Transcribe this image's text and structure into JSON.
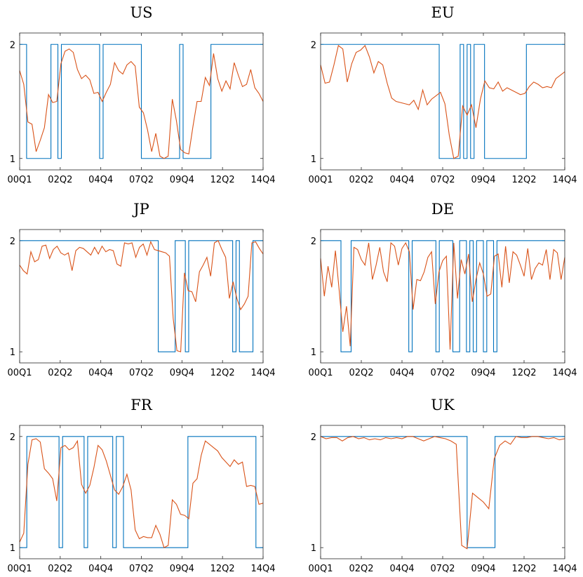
{
  "figure": {
    "colors": {
      "regime": "#0072bd",
      "probability": "#d95319",
      "axis": "#262626"
    }
  },
  "chart_data": [
    {
      "type": "line",
      "title": "US",
      "xticks": [
        "00Q1",
        "02Q2",
        "04Q4",
        "07Q2",
        "09Q4",
        "12Q2",
        "14Q4"
      ],
      "yticks": [
        "1",
        "2"
      ],
      "ylim": [
        0.9,
        2.1
      ],
      "series": [
        {
          "values": [
            2,
            2,
            1,
            1,
            1,
            1,
            1,
            1,
            1,
            2,
            2,
            1,
            2,
            2,
            2,
            2,
            2,
            2,
            2,
            2,
            2,
            2,
            2,
            1,
            2,
            2,
            2,
            2,
            2,
            2,
            2,
            2,
            2,
            2,
            2,
            1,
            1,
            1,
            1,
            1,
            1,
            1,
            1,
            1,
            1,
            1,
            2,
            1,
            1,
            1,
            1,
            1,
            1,
            1,
            1,
            2,
            2,
            2,
            2,
            2,
            2,
            2,
            2,
            2,
            2,
            2,
            2,
            2,
            2,
            2
          ]
        },
        {
          "values": [
            1.77,
            1.65,
            1.32,
            1.3,
            1.06,
            1.16,
            1.27,
            1.56,
            1.49,
            1.5,
            1.83,
            1.94,
            1.96,
            1.93,
            1.78,
            1.7,
            1.73,
            1.69,
            1.57,
            1.58,
            1.5,
            1.58,
            1.65,
            1.84,
            1.77,
            1.74,
            1.82,
            1.85,
            1.81,
            1.45,
            1.4,
            1.25,
            1.06,
            1.22,
            1.02,
            1.0,
            1.02,
            1.52,
            1.33,
            1.08,
            1.05,
            1.04,
            1.28,
            1.5,
            1.5,
            1.71,
            1.64,
            1.92,
            1.7,
            1.59,
            1.68,
            1.61,
            1.84,
            1.73,
            1.63,
            1.65,
            1.78,
            1.62,
            1.57,
            1.5
          ]
        }
      ]
    },
    {
      "type": "line",
      "title": "EU",
      "xticks": [
        "00Q1",
        "02Q2",
        "04Q4",
        "07Q2",
        "09Q4",
        "12Q2",
        "14Q4"
      ],
      "yticks": [
        "1",
        "2"
      ],
      "ylim": [
        0.9,
        2.1
      ],
      "series": [
        {
          "values": [
            2,
            2,
            2,
            2,
            2,
            2,
            2,
            2,
            2,
            2,
            2,
            2,
            2,
            2,
            2,
            2,
            2,
            2,
            2,
            2,
            2,
            2,
            2,
            2,
            2,
            2,
            2,
            2,
            2,
            2,
            2,
            2,
            2,
            2,
            1,
            1,
            1,
            1,
            1,
            1,
            2,
            1,
            2,
            1,
            2,
            2,
            2,
            1,
            1,
            1,
            1,
            1,
            1,
            1,
            1,
            1,
            1,
            1,
            1,
            2,
            2,
            2,
            2,
            2,
            2,
            2,
            2,
            2,
            2,
            2
          ]
        },
        {
          "values": [
            1.82,
            1.66,
            1.67,
            1.82,
            1.99,
            1.96,
            1.67,
            1.83,
            1.93,
            1.95,
            1.99,
            1.89,
            1.75,
            1.85,
            1.82,
            1.66,
            1.53,
            1.5,
            1.49,
            1.48,
            1.47,
            1.51,
            1.43,
            1.6,
            1.47,
            1.52,
            1.55,
            1.58,
            1.48,
            1.2,
            1.0,
            1.02,
            1.46,
            1.38,
            1.47,
            1.27,
            1.52,
            1.68,
            1.62,
            1.61,
            1.67,
            1.59,
            1.62,
            1.6,
            1.58,
            1.56,
            1.57,
            1.63,
            1.67,
            1.65,
            1.62,
            1.63,
            1.62,
            1.7,
            1.73,
            1.76
          ]
        }
      ]
    },
    {
      "type": "line",
      "title": "JP",
      "xticks": [
        "00Q1",
        "02Q2",
        "04Q4",
        "07Q2",
        "09Q4",
        "12Q2",
        "14Q4"
      ],
      "yticks": [
        "1",
        "2"
      ],
      "ylim": [
        0.9,
        2.1
      ],
      "series": [
        {
          "values": [
            2,
            2,
            2,
            2,
            2,
            2,
            2,
            2,
            2,
            2,
            2,
            2,
            2,
            2,
            2,
            2,
            2,
            2,
            2,
            2,
            2,
            2,
            2,
            2,
            2,
            2,
            2,
            2,
            2,
            2,
            2,
            2,
            2,
            2,
            2,
            2,
            2,
            2,
            2,
            2,
            2,
            1,
            1,
            1,
            1,
            1,
            2,
            2,
            2,
            1,
            2,
            2,
            2,
            2,
            2,
            2,
            2,
            2,
            2,
            2,
            2,
            2,
            2,
            1,
            2,
            1,
            1,
            1,
            1,
            2,
            2,
            2
          ]
        },
        {
          "values": [
            1.78,
            1.73,
            1.7,
            1.9,
            1.81,
            1.83,
            1.95,
            1.96,
            1.84,
            1.92,
            1.95,
            1.89,
            1.87,
            1.89,
            1.73,
            1.91,
            1.94,
            1.93,
            1.9,
            1.87,
            1.94,
            1.88,
            1.95,
            1.9,
            1.92,
            1.91,
            1.79,
            1.77,
            1.98,
            1.97,
            1.98,
            1.85,
            1.94,
            1.97,
            1.87,
            1.99,
            1.92,
            1.91,
            1.9,
            1.89,
            1.86,
            1.3,
            1.01,
            1.0,
            1.71,
            1.55,
            1.54,
            1.45,
            1.72,
            1.78,
            1.85,
            1.68,
            1.98,
            2.0,
            1.92,
            1.85,
            1.48,
            1.63,
            1.48,
            1.38,
            1.43,
            1.5,
            1.98,
            1.99,
            1.93,
            1.88
          ]
        }
      ]
    },
    {
      "type": "line",
      "title": "DE",
      "xticks": [
        "00Q1",
        "02Q2",
        "04Q4",
        "07Q2",
        "09Q4",
        "12Q2",
        "14Q4"
      ],
      "yticks": [
        "1",
        "2"
      ],
      "ylim": [
        0.9,
        2.1
      ],
      "series": [
        {
          "values": [
            2,
            2,
            2,
            2,
            2,
            2,
            1,
            1,
            1,
            2,
            2,
            2,
            2,
            2,
            2,
            2,
            2,
            2,
            2,
            2,
            2,
            2,
            2,
            2,
            2,
            2,
            1,
            2,
            2,
            2,
            2,
            2,
            2,
            2,
            1,
            2,
            2,
            2,
            2,
            1,
            1,
            2,
            2,
            1,
            2,
            1,
            2,
            2,
            1,
            2,
            2,
            1,
            2,
            2,
            2,
            2,
            2,
            2,
            2,
            2,
            2,
            2,
            2,
            2,
            2,
            2,
            2,
            2,
            2,
            2,
            2,
            2
          ]
        },
        {
          "values": [
            1.84,
            1.5,
            1.77,
            1.58,
            1.91,
            1.56,
            1.18,
            1.41,
            1.05,
            1.94,
            1.92,
            1.83,
            1.78,
            1.98,
            1.65,
            1.78,
            1.94,
            1.72,
            1.63,
            1.98,
            1.95,
            1.78,
            1.93,
            1.98,
            1.9,
            1.38,
            1.65,
            1.64,
            1.72,
            1.85,
            1.9,
            1.43,
            1.72,
            1.82,
            1.86,
            1.02,
            1.98,
            1.48,
            1.83,
            1.7,
            1.88,
            1.45,
            1.65,
            1.8,
            1.7,
            1.5,
            1.52,
            1.86,
            1.88,
            1.58,
            1.95,
            1.62,
            1.9,
            1.87,
            1.78,
            1.68,
            1.93,
            1.65,
            1.75,
            1.8,
            1.78,
            1.92,
            1.65,
            1.92,
            1.89,
            1.65,
            1.85
          ]
        }
      ]
    },
    {
      "type": "line",
      "title": "FR",
      "xticks": [
        "00Q1",
        "02Q2",
        "04Q4",
        "07Q2",
        "09Q4",
        "12Q2",
        "14Q4"
      ],
      "yticks": [
        "1",
        "2"
      ],
      "ylim": [
        0.9,
        2.1
      ],
      "series": [
        {
          "values": [
            1,
            1,
            2,
            2,
            2,
            2,
            2,
            2,
            2,
            2,
            2,
            1,
            2,
            2,
            2,
            2,
            2,
            2,
            1,
            2,
            2,
            2,
            2,
            2,
            2,
            2,
            1,
            2,
            2,
            1,
            1,
            1,
            1,
            1,
            1,
            1,
            1,
            1,
            1,
            1,
            1,
            1,
            1,
            1,
            1,
            1,
            1,
            2,
            2,
            2,
            2,
            2,
            2,
            2,
            2,
            2,
            2,
            2,
            2,
            2,
            2,
            2,
            2,
            2,
            2,
            2,
            1,
            1
          ]
        },
        {
          "values": [
            1.05,
            1.13,
            1.75,
            1.97,
            1.98,
            1.95,
            1.71,
            1.67,
            1.62,
            1.42,
            1.9,
            1.92,
            1.88,
            1.9,
            1.96,
            1.57,
            1.49,
            1.56,
            1.72,
            1.92,
            1.88,
            1.78,
            1.65,
            1.52,
            1.48,
            1.55,
            1.66,
            1.52,
            1.16,
            1.08,
            1.1,
            1.09,
            1.09,
            1.2,
            1.12,
            1.0,
            1.02,
            1.43,
            1.39,
            1.3,
            1.29,
            1.26,
            1.58,
            1.62,
            1.83,
            1.96,
            1.93,
            1.9,
            1.87,
            1.81,
            1.77,
            1.73,
            1.79,
            1.75,
            1.77,
            1.55,
            1.56,
            1.55,
            1.39,
            1.4
          ]
        }
      ]
    },
    {
      "type": "line",
      "title": "UK",
      "xticks": [
        "00Q1",
        "02Q2",
        "04Q4",
        "07Q2",
        "09Q4",
        "12Q2",
        "14Q4"
      ],
      "yticks": [
        "1",
        "2"
      ],
      "ylim": [
        0.9,
        2.1
      ],
      "series": [
        {
          "values": [
            2,
            2,
            2,
            2,
            2,
            2,
            2,
            2,
            2,
            2,
            2,
            2,
            2,
            2,
            2,
            2,
            2,
            2,
            2,
            2,
            2,
            2,
            2,
            2,
            2,
            2,
            2,
            2,
            2,
            2,
            2,
            2,
            2,
            2,
            2,
            2,
            2,
            2,
            2,
            2,
            2,
            2,
            1,
            1,
            1,
            1,
            1,
            1,
            1,
            1,
            2,
            2,
            2,
            2,
            2,
            2,
            2,
            2,
            2,
            2,
            2,
            2,
            2,
            2,
            2,
            2,
            2,
            2,
            2,
            2
          ]
        },
        {
          "values": [
            2.0,
            1.98,
            1.99,
            1.99,
            1.96,
            1.99,
            2.0,
            1.98,
            1.99,
            1.97,
            1.98,
            1.97,
            1.99,
            1.98,
            1.99,
            1.98,
            2.0,
            2.0,
            1.98,
            1.96,
            1.98,
            2.0,
            1.99,
            1.98,
            1.96,
            1.93,
            1.02,
            0.99,
            1.49,
            1.45,
            1.41,
            1.35,
            1.8,
            1.92,
            1.96,
            1.93,
            2.0,
            1.99,
            1.99,
            2.0,
            2.0,
            1.99,
            1.98,
            1.99,
            1.97,
            1.98
          ]
        }
      ]
    }
  ]
}
